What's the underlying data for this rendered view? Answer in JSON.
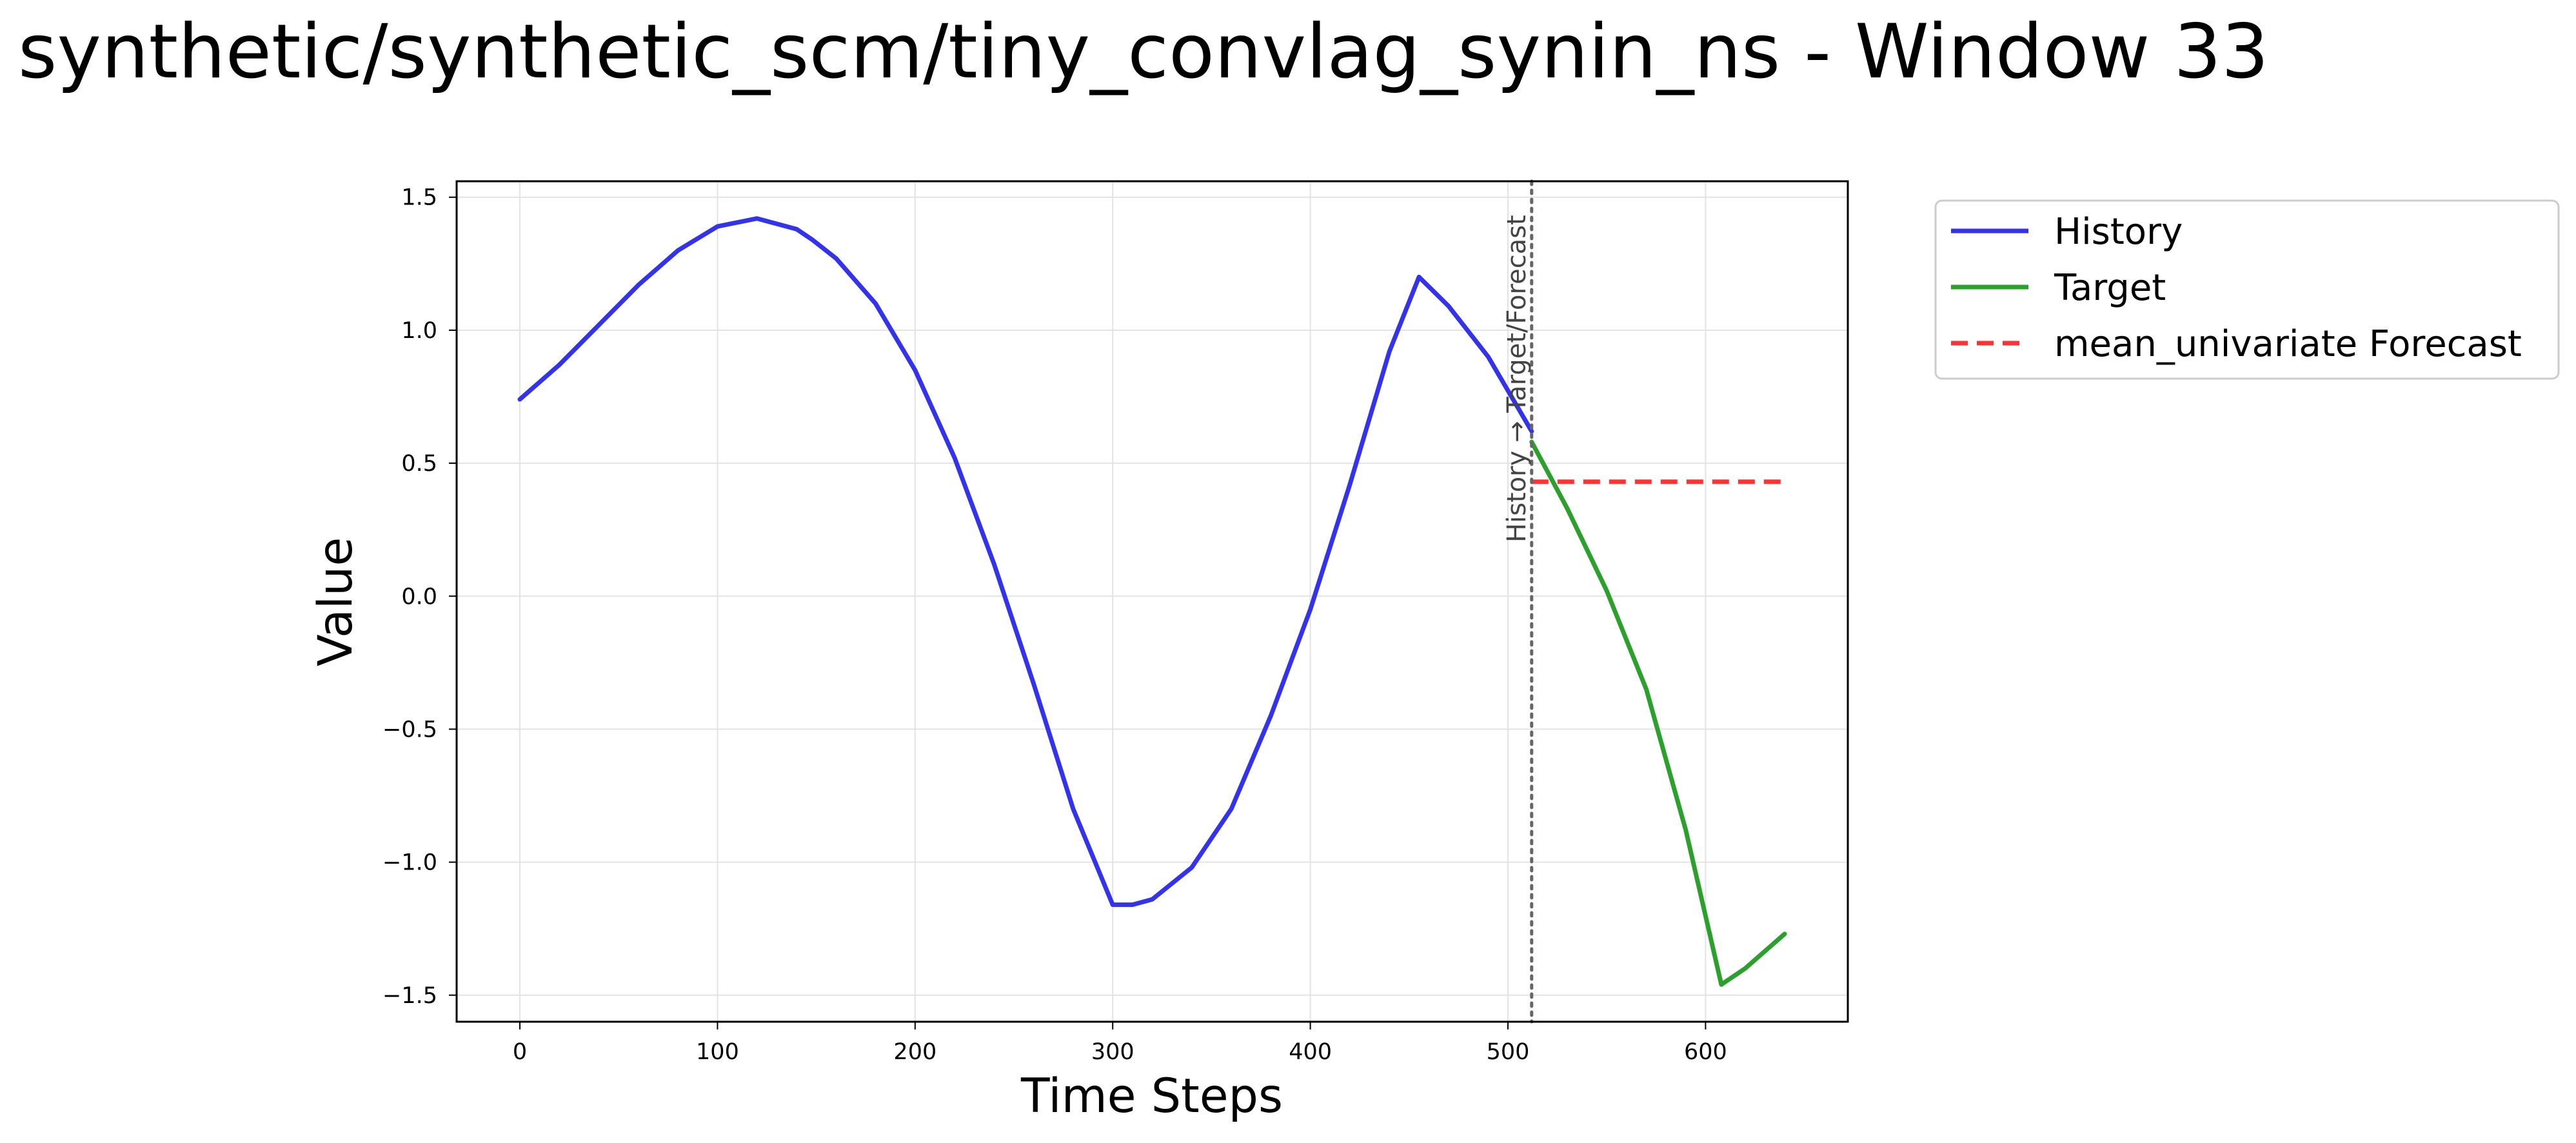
{
  "figure": {
    "title": "synthetic/synthetic_scm/tiny_convlag_synin_ns - Window 33"
  },
  "chart_data": {
    "type": "line",
    "title": "synthetic/synthetic_scm/tiny_convlag_synin_ns - Window 33",
    "xlabel": "Time Steps",
    "ylabel": "Value",
    "xlim": [
      -32,
      672
    ],
    "ylim": [
      -1.6,
      1.56
    ],
    "xticks": [
      0,
      100,
      200,
      300,
      400,
      500,
      600
    ],
    "yticks": [
      1.5,
      1.0,
      0.5,
      0.0,
      -0.5,
      -1.0,
      -1.5
    ],
    "xtick_labels": [
      "0",
      "100",
      "200",
      "300",
      "400",
      "500",
      "600"
    ],
    "ytick_labels": [
      "1.5",
      "1.0",
      "0.5",
      "0.0",
      "−0.5",
      "−1.0",
      "−1.5"
    ],
    "grid": true,
    "legend_position": "outside-top-right",
    "split_marker": {
      "x": 512,
      "label": "History → Target/Forecast",
      "color": "#666666"
    },
    "series": [
      {
        "name": "History",
        "color": "#3333ee",
        "style": "solid",
        "x": [
          0,
          20,
          40,
          60,
          80,
          100,
          120,
          140,
          148,
          160,
          180,
          200,
          220,
          240,
          260,
          280,
          300,
          310,
          320,
          340,
          360,
          380,
          400,
          420,
          440,
          455,
          470,
          490,
          512
        ],
        "y": [
          0.74,
          0.87,
          1.02,
          1.17,
          1.3,
          1.39,
          1.42,
          1.38,
          1.34,
          1.27,
          1.1,
          0.85,
          0.52,
          0.12,
          -0.33,
          -0.8,
          -1.16,
          -1.16,
          -1.14,
          -1.02,
          -0.8,
          -0.45,
          -0.05,
          0.42,
          0.92,
          1.2,
          1.09,
          0.9,
          0.62
        ]
      },
      {
        "name": "Target",
        "color": "#2ca02c",
        "style": "solid",
        "x": [
          512,
          530,
          550,
          570,
          590,
          608,
          620,
          640
        ],
        "y": [
          0.58,
          0.33,
          0.02,
          -0.35,
          -0.88,
          -1.46,
          -1.4,
          -1.27
        ]
      },
      {
        "name": "mean_univariate Forecast",
        "color": "#ff3333",
        "style": "dashed",
        "x": [
          512,
          640
        ],
        "y": [
          0.43,
          0.43
        ]
      }
    ]
  }
}
